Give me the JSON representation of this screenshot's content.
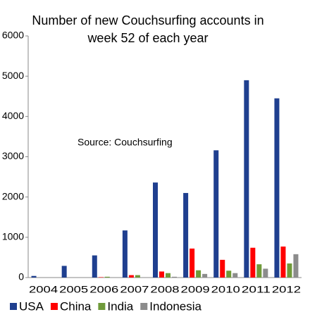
{
  "chart_data": {
    "type": "bar",
    "title": "Number of new Couchsurfing accounts in week 52 of each year",
    "annotation": "Source: Couchsurfing",
    "categories": [
      "2004",
      "2005",
      "2006",
      "2007",
      "2008",
      "2009",
      "2010",
      "2011",
      "2012"
    ],
    "series": [
      {
        "name": "USA",
        "color": "#1f3f8f",
        "values": [
          40,
          290,
          550,
          1170,
          2360,
          2100,
          3160,
          4900,
          4450
        ]
      },
      {
        "name": "China",
        "color": "#ff0000",
        "values": [
          0,
          0,
          10,
          60,
          150,
          720,
          440,
          740,
          770
        ]
      },
      {
        "name": "India",
        "color": "#6f9a3a",
        "values": [
          0,
          0,
          20,
          60,
          110,
          180,
          170,
          330,
          350
        ]
      },
      {
        "name": "Indonesia",
        "color": "#8c8c8c",
        "values": [
          0,
          0,
          0,
          0,
          20,
          90,
          110,
          220,
          580
        ]
      }
    ],
    "ylim": [
      0,
      6000
    ],
    "yticks": [
      0,
      1000,
      2000,
      3000,
      4000,
      5000,
      6000
    ],
    "grid": false
  }
}
